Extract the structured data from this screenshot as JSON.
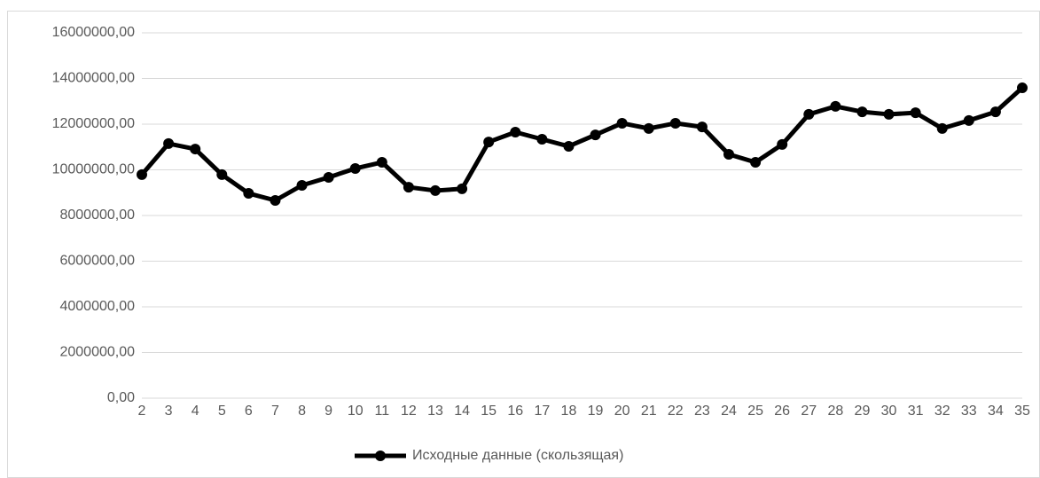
{
  "chart_data": {
    "type": "line",
    "categories": [
      "2",
      "3",
      "4",
      "5",
      "6",
      "7",
      "8",
      "9",
      "10",
      "11",
      "12",
      "13",
      "14",
      "15",
      "16",
      "17",
      "18",
      "19",
      "20",
      "21",
      "22",
      "23",
      "24",
      "25",
      "26",
      "27",
      "28",
      "29",
      "30",
      "31",
      "32",
      "33",
      "34",
      "35"
    ],
    "series": [
      {
        "name": "Исходные данные (скользящая)",
        "color": "#000000",
        "values": [
          9790000,
          11150000,
          10910000,
          9790000,
          8970000,
          8660000,
          9320000,
          9670000,
          10060000,
          10330000,
          9240000,
          9090000,
          9170000,
          11220000,
          11650000,
          11340000,
          11030000,
          11530000,
          12040000,
          11810000,
          12040000,
          11880000,
          10680000,
          10330000,
          11110000,
          12430000,
          12780000,
          12540000,
          12430000,
          12500000,
          11810000,
          12160000,
          12540000,
          13590000
        ]
      }
    ],
    "ylim": [
      0,
      16000000
    ],
    "yticks": [
      {
        "value": 0,
        "label": "0,00"
      },
      {
        "value": 2000000,
        "label": "2000000,00"
      },
      {
        "value": 4000000,
        "label": "4000000,00"
      },
      {
        "value": 6000000,
        "label": "6000000,00"
      },
      {
        "value": 8000000,
        "label": "8000000,00"
      },
      {
        "value": 10000000,
        "label": "10000000,00"
      },
      {
        "value": 12000000,
        "label": "12000000,00"
      },
      {
        "value": 14000000,
        "label": "14000000,00"
      },
      {
        "value": 16000000,
        "label": "16000000,00"
      }
    ],
    "grid": true,
    "legend": "bottom"
  }
}
